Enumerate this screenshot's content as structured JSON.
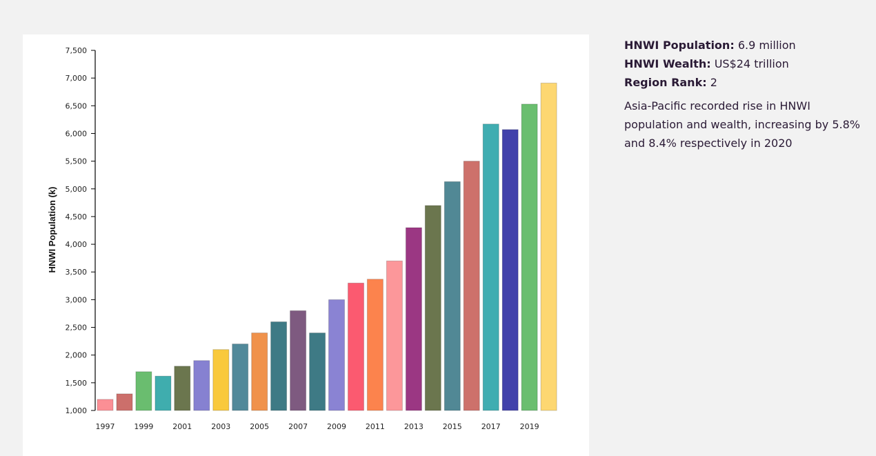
{
  "info": {
    "stats": [
      {
        "label": "HNWI Population",
        "value": "6.9 million"
      },
      {
        "label": "HNWI Wealth",
        "value": "US$24 trillion"
      },
      {
        "label": "Region Rank",
        "value": "2"
      }
    ],
    "summary": "Asia-Pacific recorded rise in HNWI population and wealth, increasing by 5.8% and 8.4% respectively in 2020"
  },
  "chart_data": {
    "type": "bar",
    "title": "",
    "xlabel": "",
    "ylabel": "HNWI Population (k)",
    "ylim": [
      1000,
      7500
    ],
    "yticks": [
      1000,
      1500,
      2000,
      2500,
      3000,
      3500,
      4000,
      4500,
      5000,
      5500,
      6000,
      6500,
      7000,
      7500
    ],
    "ytick_labels": [
      "1,000",
      "1,500",
      "2,000",
      "2,500",
      "3,000",
      "3,500",
      "4,000",
      "4,500",
      "5,000",
      "5,500",
      "6,000",
      "6,500",
      "7,000",
      "7,500"
    ],
    "categories": [
      "1997",
      "1998",
      "1999",
      "2000",
      "2001",
      "2002",
      "2003",
      "2004",
      "2005",
      "2006",
      "2007",
      "2008",
      "2009",
      "2010",
      "2011",
      "2012",
      "2013",
      "2014",
      "2015",
      "2016",
      "2017",
      "2018",
      "2019",
      "2020"
    ],
    "xtick_labels": [
      "1997",
      "1999",
      "2001",
      "2003",
      "2005",
      "2007",
      "2009",
      "2011",
      "2013",
      "2015",
      "2017",
      "2019"
    ],
    "values": [
      1200,
      1300,
      1700,
      1620,
      1800,
      1900,
      2100,
      2200,
      2400,
      2600,
      2800,
      2400,
      3000,
      3300,
      3370,
      3700,
      4300,
      4700,
      5130,
      5500,
      6170,
      6070,
      6530,
      6910
    ],
    "colors": [
      "#fb8f95",
      "#cc6f6b",
      "#6abd6f",
      "#3fadae",
      "#6b764e",
      "#8681d1",
      "#f9c93c",
      "#51899a",
      "#f0924b",
      "#3e7a85",
      "#7e5a80",
      "#3e7a85",
      "#8a83d3",
      "#fb5a70",
      "#fc834d",
      "#fc979a",
      "#9b3783",
      "#6b764e",
      "#518895",
      "#cd716b",
      "#40adb1",
      "#4141ab",
      "#6abe6f",
      "#fdd771"
    ],
    "grid": false,
    "legend": "none"
  }
}
